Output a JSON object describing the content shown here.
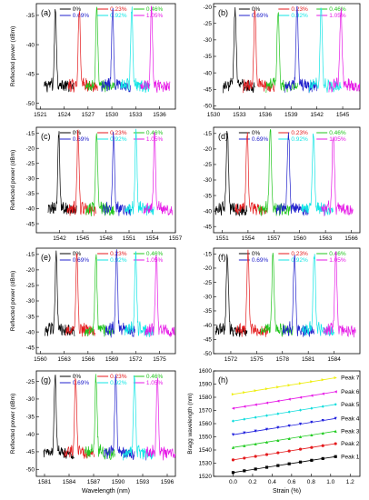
{
  "colors": {
    "s0": "#000000",
    "s1": "#e41a1c",
    "s2": "#22c51e",
    "s3": "#2222cc",
    "s4": "#11e5e5",
    "s5": "#e619e6",
    "peaks": [
      "#000000",
      "#e41a1c",
      "#22cc22",
      "#1f1fdd",
      "#11dddd",
      "#e619e6",
      "#eeee11"
    ]
  },
  "chart_data": [
    {
      "type": "line",
      "panel": "(a)",
      "ylabel": "Reflected power (dBm)",
      "xlabel": "",
      "xlim": [
        1520.5,
        1538
      ],
      "ylim": [
        -51,
        -33
      ],
      "xticks": [
        1521,
        1524,
        1527,
        1530,
        1533,
        1536
      ],
      "yticks": [
        -50,
        -45,
        -40,
        -35
      ],
      "series": [
        {
          "name": "0%",
          "peak": 1522.9
        },
        {
          "name": "0.23%",
          "peak": 1525.9
        },
        {
          "name": "0.46%",
          "peak": 1528.1
        },
        {
          "name": "0.69%",
          "peak": 1530.1
        },
        {
          "name": "0.92%",
          "peak": 1532.5
        },
        {
          "name": "1.05%",
          "peak": 1535.0
        }
      ]
    },
    {
      "type": "line",
      "panel": "(b)",
      "ylabel": "",
      "xlabel": "",
      "xlim": [
        1530,
        1547
      ],
      "ylim": [
        -51,
        -19
      ],
      "xticks": [
        1530,
        1533,
        1536,
        1539,
        1542,
        1545
      ],
      "yticks": [
        -50,
        -45,
        -40,
        -35,
        -30,
        -25,
        -20
      ],
      "series": [
        {
          "name": "0%",
          "peak": 1532.5
        },
        {
          "name": "0.23%",
          "peak": 1534.8
        },
        {
          "name": "0.46%",
          "peak": 1537.5
        },
        {
          "name": "0.69%",
          "peak": 1539.7
        },
        {
          "name": "0.92%",
          "peak": 1542.5
        },
        {
          "name": "1.05%",
          "peak": 1544.8
        }
      ]
    },
    {
      "type": "line",
      "panel": "(c)",
      "ylabel": "Reflected power (dBm)",
      "xlabel": "",
      "xlim": [
        1539,
        1557
      ],
      "ylim": [
        -48,
        -13
      ],
      "xticks": [
        1542,
        1545,
        1548,
        1551,
        1554,
        1557
      ],
      "yticks": [
        -45,
        -40,
        -35,
        -30,
        -25,
        -20,
        -15
      ],
      "series": [
        {
          "name": "0%",
          "peak": 1541.9
        },
        {
          "name": "0.23%",
          "peak": 1544.4
        },
        {
          "name": "0.46%",
          "peak": 1546.8
        },
        {
          "name": "0.69%",
          "peak": 1549.0
        },
        {
          "name": "0.92%",
          "peak": 1551.9
        },
        {
          "name": "1.05%",
          "peak": 1554.3
        }
      ]
    },
    {
      "type": "line",
      "panel": "(d)",
      "ylabel": "",
      "xlabel": "",
      "xlim": [
        1550,
        1567
      ],
      "ylim": [
        -47,
        -13
      ],
      "xticks": [
        1551,
        1554,
        1557,
        1560,
        1563,
        1566
      ],
      "yticks": [
        -45,
        -40,
        -35,
        -30,
        -25,
        -20,
        -15
      ],
      "series": [
        {
          "name": "0%",
          "peak": 1551.6
        },
        {
          "name": "0.23%",
          "peak": 1553.9
        },
        {
          "name": "0.46%",
          "peak": 1556.6
        },
        {
          "name": "0.69%",
          "peak": 1558.7
        },
        {
          "name": "0.92%",
          "peak": 1561.6
        },
        {
          "name": "1.05%",
          "peak": 1563.9
        }
      ]
    },
    {
      "type": "line",
      "panel": "(e)",
      "ylabel": "Reflected power (dBm)",
      "xlabel": "",
      "xlim": [
        1559.5,
        1577
      ],
      "ylim": [
        -47,
        -13
      ],
      "xticks": [
        1560,
        1563,
        1566,
        1569,
        1572,
        1575
      ],
      "yticks": [
        -45,
        -40,
        -35,
        -30,
        -25,
        -20,
        -15
      ],
      "series": [
        {
          "name": "0%",
          "peak": 1562.0
        },
        {
          "name": "0.23%",
          "peak": 1564.6
        },
        {
          "name": "0.46%",
          "peak": 1567.0
        },
        {
          "name": "0.69%",
          "peak": 1569.6
        },
        {
          "name": "0.92%",
          "peak": 1572.0
        },
        {
          "name": "1.05%",
          "peak": 1574.6
        }
      ]
    },
    {
      "type": "line",
      "panel": "(f)",
      "ylabel": "",
      "xlabel": "",
      "xlim": [
        1570,
        1587
      ],
      "ylim": [
        -50,
        -13
      ],
      "xticks": [
        1572,
        1575,
        1578,
        1581,
        1584
      ],
      "yticks": [
        -50,
        -45,
        -40,
        -35,
        -30,
        -25,
        -20,
        -15
      ],
      "series": [
        {
          "name": "0%",
          "peak": 1571.6
        },
        {
          "name": "0.23%",
          "peak": 1574.0
        },
        {
          "name": "0.46%",
          "peak": 1576.9
        },
        {
          "name": "0.69%",
          "peak": 1579.4
        },
        {
          "name": "0.92%",
          "peak": 1581.7
        },
        {
          "name": "1.05%",
          "peak": 1584.2
        }
      ]
    },
    {
      "type": "line",
      "panel": "(g)",
      "ylabel": "Reflected power (dBm)",
      "xlabel": "Wavelength (nm)",
      "xlim": [
        1580,
        1597
      ],
      "ylim": [
        -52,
        -22
      ],
      "xticks": [
        1581,
        1584,
        1587,
        1590,
        1593,
        1596
      ],
      "yticks": [
        -50,
        -45,
        -40,
        -35,
        -30,
        -25
      ],
      "series": [
        {
          "name": "0%",
          "peak": 1582.3
        },
        {
          "name": "0.23%",
          "peak": 1584.8
        },
        {
          "name": "0.46%",
          "peak": 1587.3
        },
        {
          "name": "0.69%",
          "peak": 1589.7
        },
        {
          "name": "0.92%",
          "peak": 1592.0
        },
        {
          "name": "1.05%",
          "peak": 1594.8
        }
      ]
    },
    {
      "type": "scatter",
      "panel": "(h)",
      "ylabel": "Bragg wavelength (nm)",
      "xlabel": "Strain (%)",
      "xlim": [
        -0.2,
        1.3
      ],
      "ylim": [
        1520,
        1600
      ],
      "xticks": [
        0.0,
        0.2,
        0.4,
        0.6,
        0.8,
        1.0,
        1.2
      ],
      "xtick_labels": [
        "0.0",
        "0.2",
        "0.4",
        "0.6",
        "0.8",
        "1.0",
        "1.2"
      ],
      "yticks": [
        1520,
        1530,
        1540,
        1550,
        1560,
        1570,
        1580,
        1590,
        1600
      ],
      "x": [
        0.0,
        0.115,
        0.23,
        0.345,
        0.46,
        0.575,
        0.69,
        0.805,
        0.92,
        1.05
      ],
      "series": [
        {
          "name": "Peak 1",
          "start": 1522.9,
          "end": 1535.0
        },
        {
          "name": "Peak 2",
          "start": 1532.5,
          "end": 1544.8
        },
        {
          "name": "Peak 3",
          "start": 1541.9,
          "end": 1554.3
        },
        {
          "name": "Peak 4",
          "start": 1551.6,
          "end": 1563.9
        },
        {
          "name": "Peak 5",
          "start": 1562.0,
          "end": 1574.6
        },
        {
          "name": "Peak 6",
          "start": 1571.6,
          "end": 1584.2
        },
        {
          "name": "Peak 7",
          "start": 1582.3,
          "end": 1594.8
        }
      ]
    }
  ]
}
